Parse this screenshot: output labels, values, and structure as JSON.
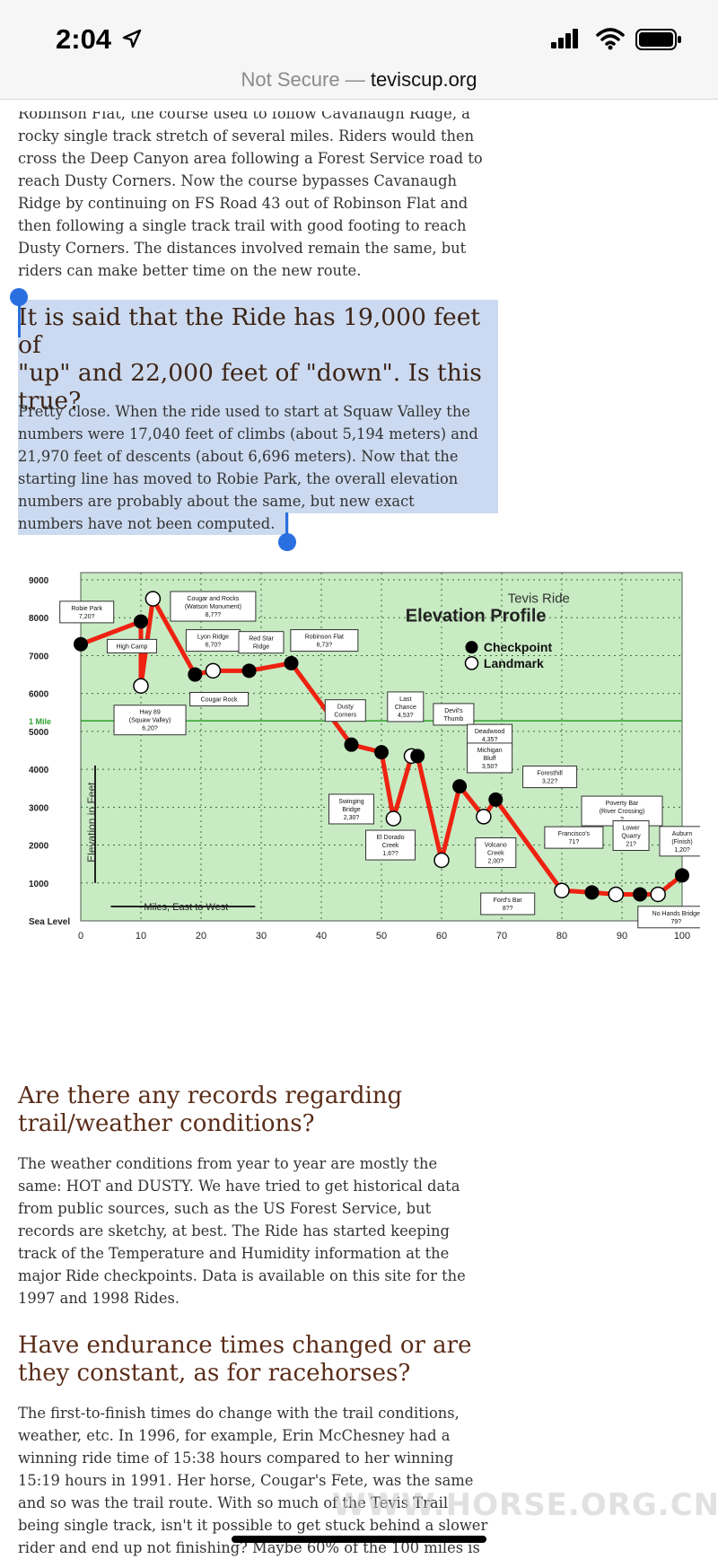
{
  "status": {
    "time": "2:04"
  },
  "browser": {
    "not_secure": "Not Secure",
    "separator": " — ",
    "domain": "teviscup.org"
  },
  "article": {
    "para1_lines": [
      "Robinson Flat, the course used to follow Cavanaugh Ridge, a",
      "rocky single track stretch of several miles. Riders would then",
      "cross the Deep Canyon area following a Forest Service road to",
      "reach Dusty Corners. Now the course bypasses Cavanaugh",
      "Ridge by continuing on FS Road 43 out of Robinson Flat and",
      "then following a single track trail with good footing to reach",
      "Dusty Corners. The distances involved remain the same, but",
      "riders can make better time on the new route."
    ],
    "h_up_down_lines": [
      "It is said that the Ride has 19,000 feet of",
      "\"up\" and 22,000 feet of \"down\". Is this",
      "true?"
    ],
    "para2_lines": [
      "Pretty close. When the ride used to start at Squaw Valley the",
      "numbers were 17,040 feet of climbs (about 5,194 meters) and",
      "21,970 feet of descents (about 6,696 meters). Now that the",
      "starting line has moved to Robie Park, the overall elevation",
      "numbers are probably about the same, but new exact",
      "numbers have not been computed."
    ],
    "h_records_lines": [
      "Are there any records regarding",
      "trail/weather conditions?"
    ],
    "para3_lines": [
      "The weather conditions from year to year are mostly the",
      "same: HOT and DUSTY. We have tried to get historical data",
      "from public sources, such as the US Forest Service, but",
      "records are sketchy, at best. The Ride has started keeping",
      "track of the Temperature and Humidity information at the",
      "major Ride checkpoints. Data is available on this site for the",
      "1997 and 1998 Rides."
    ],
    "h_times_lines": [
      "Have endurance times changed or are",
      "they constant, as for racehorses?"
    ],
    "para4_lines": [
      "The first-to-finish times do change with the trail conditions,",
      "weather, etc. In 1996, for example, Erin McChesney had a",
      "winning ride time of 15:38 hours compared to her winning",
      "15:19 hours in 1991. Her horse, Cougar's Fete, was the same",
      "and so was the trail route. With so much of the Tevis Trail",
      "being single track, isn't it possible to get stuck behind a slower",
      "rider and end up not finishing? Maybe 60% of the 100 miles is"
    ]
  },
  "watermark": "WWW.HORSE.ORG.CN",
  "chart_data": {
    "type": "line",
    "title": "Tevis Ride",
    "subtitle": "Elevation Profile",
    "xlabel": "Miles, East to West",
    "ylabel": "Elevation in Feet",
    "xlim": [
      0,
      100
    ],
    "ylim": [
      0,
      9000
    ],
    "x_ticks": [
      "0",
      "10",
      "20",
      "30",
      "40",
      "50",
      "60",
      "70",
      "80",
      "90",
      "100"
    ],
    "y_ticks": [
      "Sea Level",
      "1000",
      "2000",
      "3000",
      "4000",
      "5000",
      "6000",
      "7000",
      "8000",
      "9000"
    ],
    "one_mile_label": "1 Mile",
    "legend": [
      {
        "label": "Checkpoint",
        "marker": "filled"
      },
      {
        "label": "Landmark",
        "marker": "open"
      }
    ],
    "legend_position": "top-right",
    "grid": true,
    "colors": {
      "background": "#c8ebc3",
      "line": "#ee2211",
      "grid": "#3d6b3d",
      "one_mile_line": "#2fa12f"
    },
    "points": [
      {
        "x": 0,
        "y": 7300,
        "kind": "checkpoint"
      },
      {
        "x": 10,
        "y": 7900,
        "kind": "checkpoint"
      },
      {
        "x": 10,
        "y": 6200,
        "kind": "landmark"
      },
      {
        "x": 12,
        "y": 8500,
        "kind": "landmark"
      },
      {
        "x": 19,
        "y": 6500,
        "kind": "checkpoint"
      },
      {
        "x": 22,
        "y": 6600,
        "kind": "landmark"
      },
      {
        "x": 28,
        "y": 6600,
        "kind": "checkpoint"
      },
      {
        "x": 35,
        "y": 6800,
        "kind": "checkpoint"
      },
      {
        "x": 45,
        "y": 4650,
        "kind": "checkpoint"
      },
      {
        "x": 50,
        "y": 4450,
        "kind": "checkpoint"
      },
      {
        "x": 52,
        "y": 2700,
        "kind": "landmark"
      },
      {
        "x": 55,
        "y": 4350,
        "kind": "landmark"
      },
      {
        "x": 56,
        "y": 4350,
        "kind": "checkpoint"
      },
      {
        "x": 60,
        "y": 1600,
        "kind": "landmark"
      },
      {
        "x": 63,
        "y": 3550,
        "kind": "checkpoint"
      },
      {
        "x": 67,
        "y": 2750,
        "kind": "landmark"
      },
      {
        "x": 69,
        "y": 3200,
        "kind": "checkpoint"
      },
      {
        "x": 80,
        "y": 800,
        "kind": "landmark"
      },
      {
        "x": 85,
        "y": 750,
        "kind": "checkpoint"
      },
      {
        "x": 89,
        "y": 700,
        "kind": "landmark"
      },
      {
        "x": 93,
        "y": 700,
        "kind": "checkpoint"
      },
      {
        "x": 96,
        "y": 700,
        "kind": "landmark"
      },
      {
        "x": 100,
        "y": 1200,
        "kind": "checkpoint"
      }
    ],
    "annotations": [
      {
        "lines": [
          "Robie Park",
          "7,20?"
        ],
        "x": 1,
        "y": 8150
      },
      {
        "lines": [
          "Cougar and Rocks",
          "(Watson Monument)",
          "8,7??"
        ],
        "x": 22,
        "y": 8300
      },
      {
        "lines": [
          "High Camp"
        ],
        "x": 8.5,
        "y": 7250
      },
      {
        "lines": [
          "Lyon Ridge",
          "6,70?"
        ],
        "x": 22,
        "y": 7400
      },
      {
        "lines": [
          "Red Star",
          "Ridge"
        ],
        "x": 30,
        "y": 7350
      },
      {
        "lines": [
          "Robinson Flat",
          "6,73?"
        ],
        "x": 40.5,
        "y": 7400
      },
      {
        "lines": [
          "Cougar Rock"
        ],
        "x": 23,
        "y": 5850
      },
      {
        "lines": [
          "Hwy 89",
          "(Squaw Valley)",
          "6,20?"
        ],
        "x": 11.5,
        "y": 5300
      },
      {
        "lines": [
          "Dusty",
          "Corners"
        ],
        "x": 44,
        "y": 5550
      },
      {
        "lines": [
          "Last",
          "Chance",
          "4,53?"
        ],
        "x": 54,
        "y": 5650
      },
      {
        "lines": [
          "Devil's",
          "Thumb"
        ],
        "x": 62,
        "y": 5450
      },
      {
        "lines": [
          "Deadwood",
          "4,35?"
        ],
        "x": 68,
        "y": 4900
      },
      {
        "lines": [
          "Michigan",
          "Bluff",
          "3,50?"
        ],
        "x": 68,
        "y": 4300
      },
      {
        "lines": [
          "Foresthill",
          "3,22?"
        ],
        "x": 78,
        "y": 3800
      },
      {
        "lines": [
          "Swinging",
          "Bridge",
          "2,30?"
        ],
        "x": 45,
        "y": 2950
      },
      {
        "lines": [
          "El Dorado",
          "Creek",
          "1,6??"
        ],
        "x": 51.5,
        "y": 2000
      },
      {
        "lines": [
          "Volcano",
          "Creek",
          "2,00?"
        ],
        "x": 69,
        "y": 1800
      },
      {
        "lines": [
          "Poverty Bar",
          "(River Crossing)",
          "?"
        ],
        "x": 90,
        "y": 2900
      },
      {
        "lines": [
          "Francisco's",
          "71?"
        ],
        "x": 82,
        "y": 2200
      },
      {
        "lines": [
          "Lower",
          "Quarry",
          "21?"
        ],
        "x": 91.5,
        "y": 2250
      },
      {
        "lines": [
          "Auburn",
          "(Finish)",
          "1,20?"
        ],
        "x": 100,
        "y": 2100
      },
      {
        "lines": [
          "Ford's Bar",
          "8??"
        ],
        "x": 71,
        "y": 450
      },
      {
        "lines": [
          "No Hands Bridge",
          "79?"
        ],
        "x": 99,
        "y": 100
      }
    ]
  }
}
